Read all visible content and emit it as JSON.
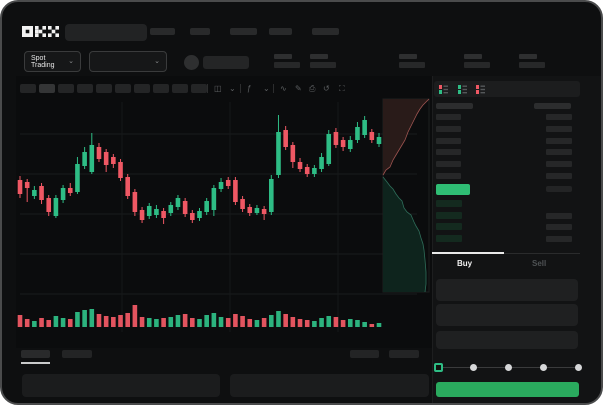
{
  "app": {
    "logo": "OKX"
  },
  "colors": {
    "green": "#2ebd85",
    "red": "#ef5864",
    "price_green": "#2fbd74",
    "button_green": "#2aaa5e",
    "bid_row_bg": "#142a1f",
    "ask_depth_fill": "#291b19",
    "ask_depth_line": "#9e5450",
    "bid_depth_fill": "#0e241d",
    "bid_depth_line": "#2e6e5a",
    "grid": "#1a1c1d",
    "placeholder": "#292a2b"
  },
  "icons": {
    "chevron_down": "⌄",
    "candle_style": "◫",
    "indicators": "ƒ",
    "wave": "∿",
    "pencil": "✎",
    "camera": "⎙",
    "undo": "↺",
    "fullscreen": "⛶",
    "divider": "|"
  },
  "header": {
    "search_value": "",
    "search_placeholder": "",
    "nav_slots": 5
  },
  "subheader": {
    "market_selector_label": "Spot Trading",
    "pair_dropdown_value": "",
    "stat_groups": 5
  },
  "chart": {
    "toolbar": {
      "interval_slots": 10,
      "active_slot": 1
    },
    "bottom_tabs": 4,
    "bottom_panels": 2
  },
  "chart_data": {
    "type": "candlestick",
    "note": "OHLC in relative price units (no numeric axis labels visible); y_px = 240 - price; volume bar heights in px above baseline y=325",
    "ylim": [
      0,
      135
    ],
    "candles": [
      [
        "d",
        62,
        66,
        44,
        48
      ],
      [
        "d",
        60,
        63,
        40,
        54
      ],
      [
        "u",
        46,
        56,
        43,
        52
      ],
      [
        "d",
        56,
        59,
        38,
        42
      ],
      [
        "d",
        44,
        47,
        26,
        30
      ],
      [
        "u",
        26,
        47,
        24,
        44
      ],
      [
        "u",
        42,
        57,
        39,
        54
      ],
      [
        "d",
        54,
        59,
        46,
        49
      ],
      [
        "u",
        50,
        85,
        48,
        78
      ],
      [
        "u",
        76,
        95,
        73,
        90
      ],
      [
        "u",
        70,
        109,
        68,
        97
      ],
      [
        "d",
        95,
        99,
        80,
        83
      ],
      [
        "d",
        90,
        93,
        70,
        77
      ],
      [
        "d",
        85,
        88,
        74,
        78
      ],
      [
        "d",
        80,
        83,
        61,
        64
      ],
      [
        "d",
        65,
        68,
        43,
        46
      ],
      [
        "d",
        50,
        53,
        26,
        30
      ],
      [
        "d",
        32,
        35,
        19,
        22
      ],
      [
        "u",
        26,
        39,
        23,
        36
      ],
      [
        "u",
        27,
        37,
        24,
        33
      ],
      [
        "d",
        31,
        34,
        18,
        24
      ],
      [
        "u",
        29,
        40,
        26,
        37
      ],
      [
        "u",
        35,
        47,
        32,
        44
      ],
      [
        "d",
        41,
        44,
        25,
        28
      ],
      [
        "d",
        29,
        32,
        19,
        22
      ],
      [
        "u",
        24,
        34,
        21,
        31
      ],
      [
        "u",
        30,
        44,
        27,
        41
      ],
      [
        "u",
        32,
        57,
        26,
        54
      ],
      [
        "u",
        53,
        64,
        50,
        60
      ],
      [
        "d",
        62,
        65,
        53,
        56
      ],
      [
        "d",
        62,
        65,
        37,
        40
      ],
      [
        "d",
        43,
        46,
        30,
        33
      ],
      [
        "d",
        35,
        38,
        26,
        29
      ],
      [
        "u",
        29,
        37,
        27,
        34
      ],
      [
        "d",
        33,
        36,
        22,
        28
      ],
      [
        "u",
        30,
        67,
        27,
        63
      ],
      [
        "u",
        67,
        127,
        64,
        110
      ],
      [
        "d",
        112,
        116,
        92,
        95
      ],
      [
        "d",
        97,
        100,
        74,
        80
      ],
      [
        "d",
        80,
        84,
        70,
        73
      ],
      [
        "d",
        75,
        78,
        65,
        68
      ],
      [
        "u",
        68,
        77,
        65,
        74
      ],
      [
        "u",
        73,
        89,
        70,
        85
      ],
      [
        "u",
        78,
        112,
        76,
        108
      ],
      [
        "d",
        110,
        114,
        94,
        97
      ],
      [
        "d",
        102,
        105,
        91,
        95
      ],
      [
        "u",
        93,
        106,
        90,
        102
      ],
      [
        "u",
        102,
        120,
        99,
        115
      ],
      [
        "u",
        107,
        126,
        104,
        122
      ],
      [
        "d",
        110,
        113,
        99,
        102
      ],
      [
        "u",
        98,
        109,
        95,
        105
      ]
    ],
    "volumes": [
      12,
      8,
      6,
      9,
      7,
      11,
      9,
      8,
      15,
      17,
      18,
      13,
      11,
      10,
      12,
      14,
      22,
      10,
      9,
      8,
      9,
      10,
      12,
      13,
      9,
      8,
      12,
      14,
      10,
      9,
      13,
      11,
      8,
      7,
      9,
      12,
      16,
      13,
      10,
      8,
      7,
      6,
      9,
      11,
      10,
      7,
      8,
      7,
      5,
      3,
      4
    ],
    "depth_ask_curve": [
      [
        381,
        173
      ],
      [
        384,
        168
      ],
      [
        388,
        165
      ],
      [
        391,
        158
      ],
      [
        394,
        153
      ],
      [
        397,
        148
      ],
      [
        400,
        143
      ],
      [
        403,
        138
      ],
      [
        406,
        130
      ],
      [
        409,
        124
      ],
      [
        412,
        118
      ],
      [
        415,
        112
      ],
      [
        418,
        107
      ],
      [
        421,
        103
      ],
      [
        424,
        100
      ],
      [
        427,
        97
      ]
    ],
    "depth_bid_curve": [
      [
        381,
        175
      ],
      [
        385,
        180
      ],
      [
        388,
        184
      ],
      [
        391,
        187
      ],
      [
        394,
        192
      ],
      [
        397,
        196
      ],
      [
        400,
        199
      ],
      [
        402,
        206
      ],
      [
        405,
        210
      ],
      [
        409,
        213
      ],
      [
        412,
        220
      ],
      [
        414,
        224
      ],
      [
        417,
        229
      ],
      [
        419,
        236
      ],
      [
        421,
        242
      ],
      [
        422,
        248
      ],
      [
        423,
        258
      ],
      [
        424,
        270
      ],
      [
        424,
        282
      ],
      [
        423,
        290
      ]
    ]
  },
  "order_book": {
    "modes": [
      "combined",
      "bids",
      "asks"
    ],
    "ask_rows": 6,
    "bid_rows": 4,
    "current_price_highlight": "green"
  },
  "trade_panel": {
    "tabs": [
      {
        "label": "Buy",
        "active": true
      },
      {
        "label": "Sell",
        "active": false
      }
    ],
    "field_count": 3,
    "slider": {
      "value_pct": 0,
      "stops": [
        0,
        25,
        50,
        75,
        100
      ]
    },
    "buy_button_label": ""
  }
}
